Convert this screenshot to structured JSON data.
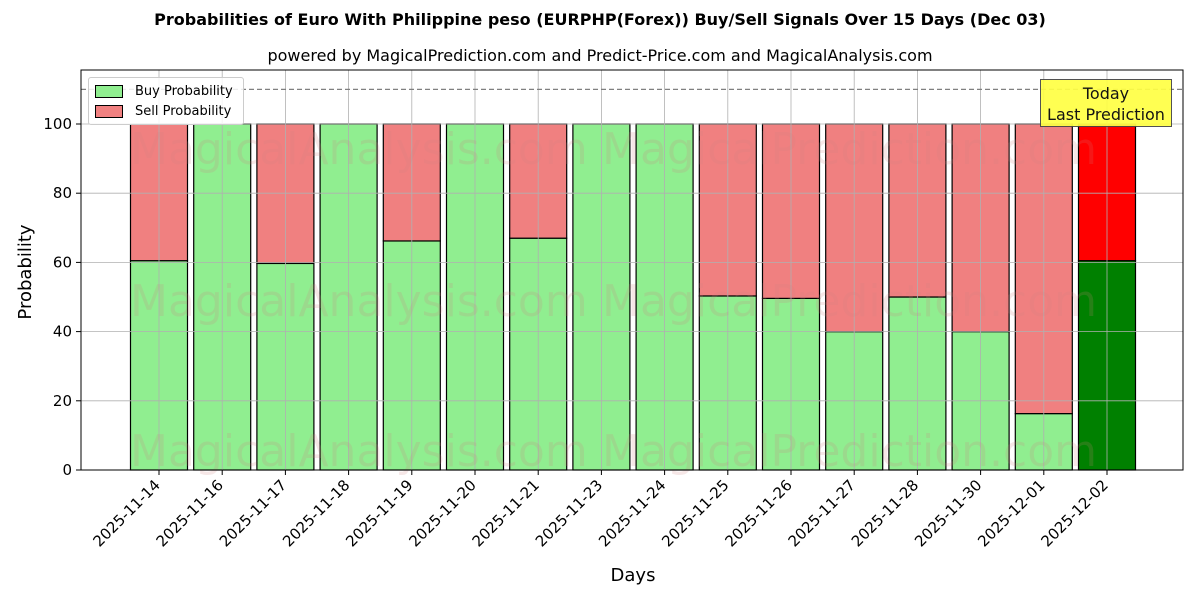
{
  "chart_data": {
    "type": "bar",
    "stacked": true,
    "title": "Probabilities of Euro With Philippine peso (EURPHP(Forex)) Buy/Sell Signals Over 15 Days (Dec 03)",
    "subtitle": "powered by MagicalPrediction.com and Predict-Price.com and MagicalAnalysis.com",
    "xlabel": "Days",
    "ylabel": "Probability",
    "ylim": [
      0,
      115
    ],
    "yticks": [
      0,
      20,
      40,
      60,
      80,
      100
    ],
    "reference_line": 110,
    "grid": true,
    "legend_position": "upper left",
    "categories": [
      "2025-11-14",
      "2025-11-16",
      "2025-11-17",
      "2025-11-18",
      "2025-11-19",
      "2025-11-20",
      "2025-11-21",
      "2025-11-23",
      "2025-11-24",
      "2025-11-25",
      "2025-11-26",
      "2025-11-27",
      "2025-11-28",
      "2025-11-30",
      "2025-12-01",
      "2025-12-02"
    ],
    "series": [
      {
        "name": "Buy Probability",
        "color": "#90ee90",
        "values": [
          60.5,
          100,
          59.7,
          100,
          66.2,
          100,
          67.0,
          100,
          100,
          50.3,
          49.6,
          40.0,
          50.0,
          40.0,
          16.3,
          60.5
        ]
      },
      {
        "name": "Sell Probability",
        "color": "#f08080",
        "values": [
          39.5,
          0,
          40.3,
          0,
          33.8,
          0,
          33.0,
          0,
          0,
          49.7,
          50.4,
          60.0,
          50.0,
          60.0,
          83.7,
          39.5
        ]
      }
    ],
    "highlight": {
      "index": 15,
      "buy_color": "#008000",
      "sell_color": "#ff0000",
      "annotation": "Today\nLast Prediction"
    },
    "watermarks": [
      "MagicalAnalysis.com",
      "MagicalPrediction.com"
    ]
  },
  "legend": {
    "buy": "Buy Probability",
    "sell": "Sell Probability"
  },
  "annotation": {
    "line1": "Today",
    "line2": "Last Prediction"
  }
}
